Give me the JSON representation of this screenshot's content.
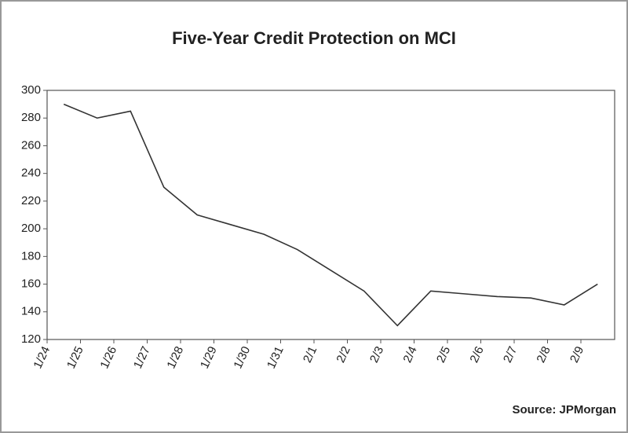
{
  "chart_data": {
    "type": "line",
    "title": "Five-Year Credit Protection on MCI",
    "source": "Source: JPMorgan",
    "categories": [
      "1/24",
      "1/25",
      "1/26",
      "1/27",
      "1/28",
      "1/29",
      "1/30",
      "1/31",
      "2/1",
      "2/2",
      "2/3",
      "2/4",
      "2/5",
      "2/6",
      "2/7",
      "2/8",
      "2/9"
    ],
    "series": [
      {
        "name": "MCI",
        "color": "#333333",
        "values": [
          290,
          280,
          285,
          230,
          210,
          203,
          196,
          185,
          170,
          155,
          130,
          155,
          153,
          151,
          150,
          145,
          160
        ]
      }
    ],
    "ylim": [
      120,
      300
    ],
    "yticks": [
      120,
      140,
      160,
      180,
      200,
      220,
      240,
      260,
      280,
      300
    ],
    "grid": false
  }
}
